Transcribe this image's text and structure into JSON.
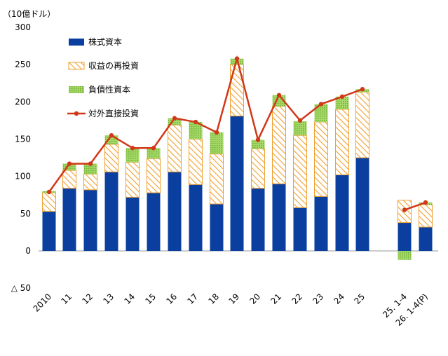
{
  "chart_data": {
    "type": "bar",
    "unit_label": "（10億ドル）",
    "y_negative_prefix": "△",
    "ylim": [
      -50,
      300
    ],
    "yticks": [
      -50,
      0,
      50,
      100,
      150,
      200,
      250,
      300
    ],
    "categories": [
      "2010",
      "11",
      "12",
      "13",
      "14",
      "15",
      "16",
      "17",
      "18",
      "19",
      "20",
      "21",
      "22",
      "23",
      "24",
      "25",
      "25. 1-4",
      "26. 1-4(P)"
    ],
    "series": [
      {
        "name": "株式資本",
        "kind": "bar",
        "values": [
          53,
          84,
          82,
          106,
          72,
          78,
          106,
          89,
          63,
          181,
          84,
          90,
          58,
          73,
          102,
          125,
          38,
          32
        ]
      },
      {
        "name": "収益の再投資",
        "kind": "bar",
        "values": [
          25,
          24,
          21,
          37,
          47,
          46,
          63,
          61,
          67,
          69,
          53,
          104,
          97,
          100,
          88,
          88,
          30,
          30
        ]
      },
      {
        "name": "負債性資本",
        "kind": "bar",
        "values": [
          2,
          9,
          14,
          12,
          19,
          14,
          9,
          23,
          29,
          8,
          12,
          15,
          19,
          24,
          17,
          4,
          -12,
          3
        ]
      },
      {
        "name": "対外直接投資",
        "kind": "line",
        "values": [
          79,
          117,
          117,
          155,
          138,
          138,
          178,
          173,
          159,
          258,
          149,
          209,
          175,
          197,
          207,
          217,
          55,
          65
        ]
      }
    ],
    "colors": {
      "equity": "#0a3fa0",
      "reinvest_stroke": "#f0a030",
      "reinvest_fill": "#ffffff",
      "debt": "#8cc63f",
      "line": "#d03818"
    },
    "legend_position": "top-left (inside plot)",
    "grid": false
  }
}
